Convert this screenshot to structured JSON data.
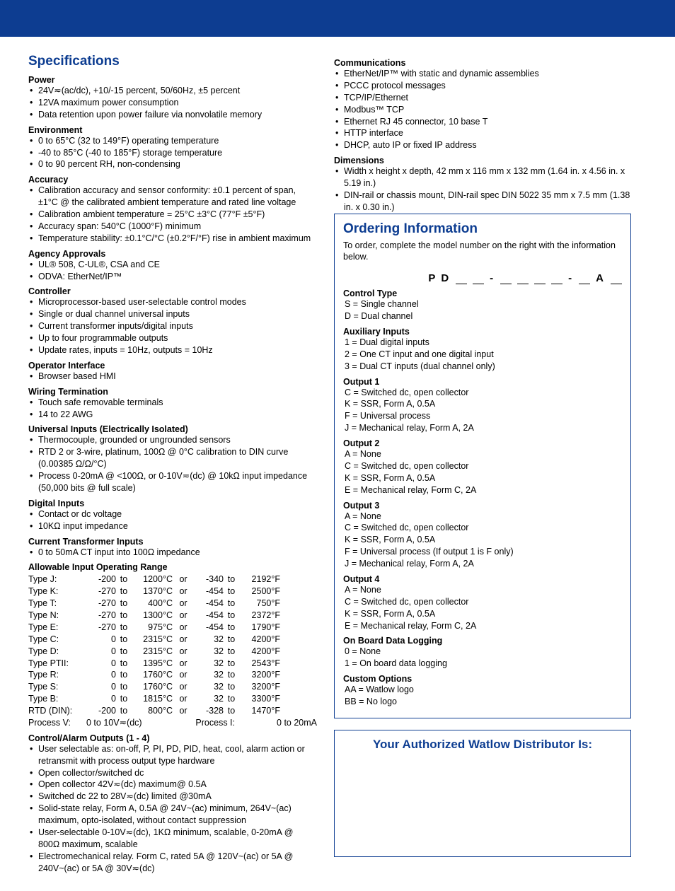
{
  "top_bar_color": "#0d3d91",
  "heading_color": "#0d3d91",
  "specs_title": "Specifications",
  "sections_left": [
    {
      "h": "Power",
      "items": [
        "24V≂(ac/dc), +10/-15 percent, 50/60Hz, ±5 percent",
        "12VA maximum power consumption",
        "Data retention upon power failure via nonvolatile memory"
      ]
    },
    {
      "h": "Environment",
      "items": [
        "0 to 65°C (32 to 149°F)  operating temperature",
        "-40 to 85°C (-40 to 185°F) storage temperature",
        "0 to 90 percent RH, non-condensing"
      ]
    },
    {
      "h": "Accuracy",
      "items": [
        "Calibration accuracy and sensor conformity: ±0.1 percent of span, ±1°C @ the calibrated ambient temperature and rated line voltage",
        "Calibration ambient temperature = 25°C ±3°C (77°F ±5°F)",
        "Accuracy span: 540°C (1000°F) minimum",
        "Temperature stability: ±0.1°C/°C (±0.2°F/°F) rise in ambient maximum"
      ]
    },
    {
      "h": "Agency Approvals",
      "items": [
        "UL® 508, C-UL®, CSA and CE",
        "ODVA: EtherNet/IP™"
      ]
    },
    {
      "h": "Controller",
      "items": [
        "Microprocessor-based user-selectable control modes",
        "Single or dual channel universal inputs",
        "Current transformer inputs/digital inputs",
        "Up to four programmable outputs",
        "Update rates, inputs = 10Hz, outputs = 10Hz"
      ]
    },
    {
      "h": "Operator Interface",
      "items": [
        "Browser based HMI"
      ]
    },
    {
      "h": "Wiring Termination",
      "items": [
        "Touch safe removable terminals",
        "14 to 22 AWG"
      ]
    },
    {
      "h": "Universal Inputs (Electrically Isolated)",
      "items": [
        "Thermocouple, grounded or ungrounded sensors",
        "RTD 2 or 3-wire, platinum, 100Ω @ 0°C calibration to DIN curve (0.00385 Ω/Ω/°C)",
        "Process 0-20mA @ <100Ω, or 0-10V≂(dc) @ 10kΩ input impedance (50,000 bits @ full scale)"
      ]
    },
    {
      "h": "Digital Inputs",
      "items": [
        "Contact or dc voltage",
        "10KΩ input impedance"
      ]
    },
    {
      "h": "Current Transformer Inputs",
      "items": [
        "0 to 50mA CT input into 100Ω impedance"
      ]
    }
  ],
  "range_h": "Allowable Input Operating Range",
  "range_rows": [
    [
      "Type J:",
      "-200",
      "to",
      "1200°C",
      "or",
      "-340",
      "to",
      "2192°F"
    ],
    [
      "Type K:",
      "-270",
      "to",
      "1370°C",
      "or",
      "-454",
      "to",
      "2500°F"
    ],
    [
      "Type T:",
      "-270",
      "to",
      "400°C",
      "or",
      "-454",
      "to",
      "750°F"
    ],
    [
      "Type N:",
      "-270",
      "to",
      "1300°C",
      "or",
      "-454",
      "to",
      "2372°F"
    ],
    [
      "Type E:",
      "-270",
      "to",
      "975°C",
      "or",
      "-454",
      "to",
      "1790°F"
    ],
    [
      "Type C:",
      "0",
      "to",
      "2315°C",
      "or",
      "32",
      "to",
      "4200°F"
    ],
    [
      "Type D:",
      "0",
      "to",
      "2315°C",
      "or",
      "32",
      "to",
      "4200°F"
    ],
    [
      "Type PTII:",
      "0",
      "to",
      "1395°C",
      "or",
      "32",
      "to",
      "2543°F"
    ],
    [
      "Type R:",
      "0",
      "to",
      "1760°C",
      "or",
      "32",
      "to",
      "3200°F"
    ],
    [
      "Type S:",
      "0",
      "to",
      "1760°C",
      "or",
      "32",
      "to",
      "3200°F"
    ],
    [
      "Type B:",
      "0",
      "to",
      "1815°C",
      "or",
      "32",
      "to",
      "3300°F"
    ],
    [
      "RTD (DIN):",
      "-200",
      "to",
      "800°C",
      "or",
      "-328",
      "to",
      "1470°F"
    ]
  ],
  "process_v_label": "Process V:",
  "process_v_val": "0 to 10V≂(dc)",
  "process_i_label": "Process I:",
  "process_i_val": "0 to 20mA",
  "ctrl_alarm_h": "Control/Alarm Outputs (1 - 4)",
  "ctrl_alarm_items": [
    "User selectable as: on-off, P, PI, PD, PID, heat, cool, alarm action or retransmit with process output type hardware",
    "Open collector/switched dc",
    "Open collector 42V≂(dc) maximum@ 0.5A",
    "Switched dc 22 to 28V≂(dc) limited @30mA",
    "Solid-state relay, Form A, 0.5A @ 24V~(ac) minimum, 264V~(ac) maximum, opto-isolated, without contact suppression",
    "User-selectable 0-10V≂(dc), 1KΩ minimum, scalable, 0-20mA @ 800Ω maximum, scalable",
    "Electromechanical relay. Form C, rated 5A @ 120V~(ac) or 5A @ 240V~(ac) or 5A @ 30V≂(dc)"
  ],
  "sections_right_top": [
    {
      "h": "Communications",
      "items": [
        "EtherNet/IP™ with static and dynamic assemblies",
        "PCCC protocol messages",
        "TCP/IP/Ethernet",
        "Modbus™ TCP",
        "Ethernet RJ 45 connector, 10 base T",
        "HTTP interface",
        "DHCP, auto IP or fixed IP address"
      ]
    },
    {
      "h": "Dimensions",
      "items": [
        "Width x height x depth, 42 mm x 116 mm x 132 mm (1.64 in. x 4.56 in. x 5.19 in.)",
        "DIN-rail or chassis mount, DIN-rail spec DIN 5022 35 mm x 7.5 mm (1.38 in. x 0.30 in.)"
      ]
    }
  ],
  "order_title": "Ordering Information",
  "order_blurb": "To order, complete the model number on the right with the information below.",
  "code_prefix": "P D",
  "code_dash": "-",
  "code_suffix": "A",
  "fieldsets": [
    {
      "h": "Control Type",
      "opts": [
        "S  =  Single channel",
        "D  =  Dual channel"
      ]
    },
    {
      "h": "Auxiliary Inputs",
      "opts": [
        "1  =  Dual digital inputs",
        "2  =  One CT input and one digital input",
        "3  =  Dual CT inputs (dual channel only)"
      ]
    },
    {
      "h": "Output 1",
      "opts": [
        "C  =  Switched dc, open collector",
        "K  =  SSR, Form A, 0.5A",
        "F  =  Universal process",
        "J  =  Mechanical relay, Form A, 2A"
      ]
    },
    {
      "h": "Output 2",
      "opts": [
        "A  =  None",
        "C  =  Switched dc, open collector",
        "K  =  SSR, Form A, 0.5A",
        "E  =  Mechanical relay, Form C, 2A"
      ]
    },
    {
      "h": "Output 3",
      "opts": [
        "A  =  None",
        "C  =  Switched dc, open collector",
        "K  =  SSR, Form A, 0.5A",
        "F  =  Universal process (If output 1 is F only)",
        "J  =  Mechanical relay, Form A, 2A"
      ]
    },
    {
      "h": "Output 4",
      "opts": [
        "A  =  None",
        "C  =  Switched dc, open collector",
        "K  =  SSR, Form A, 0.5A",
        "E  =  Mechanical relay, Form C, 2A"
      ]
    },
    {
      "h": "On Board Data Logging",
      "opts": [
        "0  =  None",
        "1  =  On board data logging"
      ]
    },
    {
      "h": "Custom Options",
      "opts": [
        "AA  =  Watlow logo",
        "BB  =  No logo"
      ]
    }
  ],
  "dist_title": "Your Authorized Watlow Distributor Is:"
}
